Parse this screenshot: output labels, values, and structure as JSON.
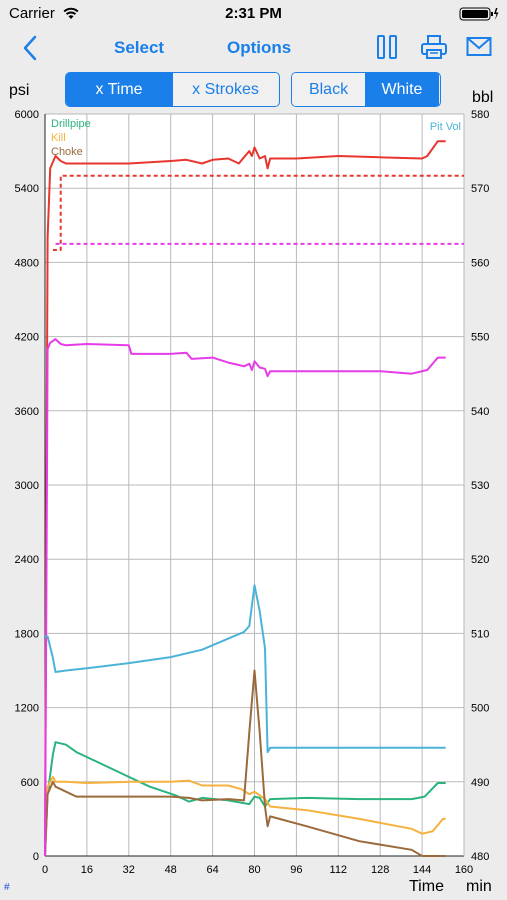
{
  "status_bar": {
    "carrier": "Carrier",
    "time": "2:31 PM"
  },
  "nav": {
    "select_label": "Select",
    "options_label": "Options"
  },
  "x_toggle": {
    "time_label": "x Time",
    "strokes_label": "x Strokes",
    "selected": "x Time"
  },
  "bg_toggle": {
    "black_label": "Black",
    "white_label": "White",
    "selected": "White"
  },
  "left_unit": "psi",
  "right_unit": "bbl",
  "footer": {
    "time_label": "Time",
    "unit_label": "min",
    "hash": "#"
  },
  "chart_data": {
    "type": "line",
    "xlim": [
      0,
      160
    ],
    "ylim_left": [
      0,
      6000
    ],
    "ylim_right": [
      480,
      580
    ],
    "x_ticks": [
      0,
      16,
      32,
      48,
      64,
      80,
      96,
      112,
      128,
      144,
      160
    ],
    "y_left_ticks": [
      0,
      600,
      1200,
      1800,
      2400,
      3000,
      3600,
      4200,
      4800,
      5400,
      6000
    ],
    "y_right_ticks": [
      480,
      490,
      500,
      510,
      520,
      530,
      540,
      550,
      560,
      570,
      580
    ],
    "grid": true,
    "legend_position": "top-left",
    "right_legend": "Pit Vol",
    "series": [
      {
        "name": "Drillpipe",
        "color": "#2bb37e",
        "axis": "left",
        "x": [
          0,
          1,
          3,
          4,
          8,
          12,
          20,
          30,
          40,
          50,
          55,
          60,
          70,
          78,
          80,
          82,
          84,
          86,
          100,
          120,
          140,
          145,
          150,
          153
        ],
        "y": [
          0,
          500,
          820,
          920,
          900,
          840,
          760,
          660,
          560,
          490,
          440,
          470,
          450,
          420,
          480,
          470,
          400,
          460,
          470,
          460,
          460,
          480,
          590,
          590
        ]
      },
      {
        "name": "Kill",
        "color": "#f5b23e",
        "axis": "left",
        "x": [
          0,
          1,
          3,
          4,
          8,
          16,
          32,
          48,
          55,
          60,
          70,
          75,
          78,
          80,
          84,
          86,
          100,
          120,
          140,
          144,
          148,
          152,
          153
        ],
        "y": [
          0,
          560,
          640,
          600,
          600,
          590,
          600,
          600,
          610,
          570,
          570,
          540,
          500,
          520,
          460,
          400,
          370,
          300,
          220,
          180,
          200,
          300,
          300
        ]
      },
      {
        "name": "Choke",
        "color": "#9b6a3c",
        "axis": "left",
        "x": [
          0,
          1,
          3,
          4,
          8,
          12,
          32,
          48,
          55,
          60,
          70,
          76,
          78,
          80,
          82,
          84,
          85,
          86,
          100,
          120,
          140,
          144,
          148,
          152,
          153
        ],
        "y": [
          0,
          500,
          600,
          560,
          520,
          480,
          480,
          480,
          470,
          450,
          460,
          450,
          1000,
          1500,
          1000,
          400,
          240,
          320,
          240,
          120,
          50,
          0,
          0,
          0,
          0
        ]
      },
      {
        "name": "",
        "color": "#e8362e",
        "axis": "left",
        "x": [
          0,
          0.5,
          1,
          2,
          4,
          6,
          8,
          16,
          32,
          48,
          54,
          60,
          64,
          70,
          74,
          76,
          78,
          79,
          80,
          82,
          84,
          85,
          86,
          96,
          112,
          128,
          144,
          146,
          150,
          153
        ],
        "y": [
          0,
          2600,
          5000,
          5560,
          5660,
          5620,
          5600,
          5600,
          5600,
          5620,
          5630,
          5600,
          5630,
          5640,
          5600,
          5650,
          5700,
          5660,
          5730,
          5640,
          5660,
          5560,
          5640,
          5640,
          5660,
          5650,
          5640,
          5660,
          5780,
          5780
        ]
      },
      {
        "name": "",
        "color": "#e8362e",
        "axis": "left",
        "dash": true,
        "x": [
          3,
          6,
          6,
          8,
          160
        ],
        "y": [
          4900,
          4900,
          5500,
          5500,
          5500
        ]
      },
      {
        "name": "",
        "color": "#e63be8",
        "axis": "left",
        "x": [
          0,
          0.5,
          1,
          2,
          4,
          6,
          8,
          16,
          32,
          33,
          48,
          54,
          56,
          64,
          70,
          74,
          76,
          78,
          79,
          80,
          82,
          84,
          85,
          86,
          96,
          112,
          128,
          140,
          146,
          150,
          153
        ],
        "y": [
          0,
          2000,
          4100,
          4150,
          4180,
          4140,
          4130,
          4140,
          4130,
          4060,
          4060,
          4070,
          4020,
          4030,
          3990,
          3970,
          3960,
          3980,
          3930,
          4000,
          3950,
          3940,
          3880,
          3920,
          3920,
          3920,
          3920,
          3900,
          3930,
          4030,
          4030
        ]
      },
      {
        "name": "",
        "color": "#e63be8",
        "axis": "left",
        "dash": true,
        "x": [
          4,
          160
        ],
        "y": [
          4950,
          4950
        ]
      },
      {
        "name": "Pit Vol",
        "color": "#4bb3d8",
        "axis": "right",
        "x": [
          0,
          1,
          3,
          4,
          8,
          16,
          32,
          48,
          60,
          70,
          76,
          78,
          80,
          82,
          84,
          85,
          86,
          100,
          120,
          140,
          150,
          153
        ],
        "y": [
          509.6,
          509.6,
          506.7,
          504.8,
          505.0,
          505.3,
          506.0,
          506.8,
          507.8,
          509.3,
          510.2,
          511.0,
          516.5,
          513.0,
          508.0,
          494.0,
          494.6,
          494.6,
          494.6,
          494.6,
          494.6,
          494.6
        ]
      }
    ]
  }
}
